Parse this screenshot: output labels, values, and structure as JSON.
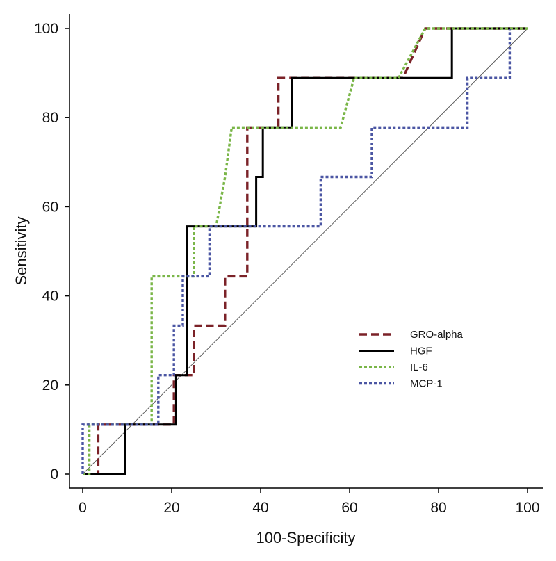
{
  "chart_data": {
    "type": "line",
    "title": "",
    "xlabel": "100-Specificity",
    "ylabel": "Sensitivity",
    "xlim": [
      0,
      100
    ],
    "ylim": [
      0,
      100
    ],
    "xticks": [
      0,
      20,
      40,
      60,
      80,
      100
    ],
    "yticks": [
      0,
      20,
      40,
      60,
      80,
      100
    ],
    "grid": false,
    "legend_position": "lower-right",
    "reference_line": {
      "name": "chance-diagonal",
      "x": [
        0,
        100
      ],
      "y": [
        0,
        100
      ],
      "color": "#555555"
    },
    "series": [
      {
        "name": "GRO-alpha",
        "style": "dashed",
        "color": "#7b2228",
        "x": [
          0,
          3.5,
          3.5,
          20.5,
          20.5,
          25,
          25,
          32,
          32,
          37,
          37,
          39,
          39,
          44,
          44,
          72,
          77,
          100
        ],
        "y": [
          0,
          0,
          11.1,
          11.1,
          22.2,
          22.2,
          33.3,
          33.3,
          44.4,
          44.4,
          77.8,
          77.8,
          77.8,
          77.8,
          88.9,
          88.9,
          100,
          100
        ]
      },
      {
        "name": "HGF",
        "style": "solid",
        "color": "#000000",
        "x": [
          0,
          9.5,
          9.5,
          21,
          21,
          23.5,
          23.5,
          37.5,
          37.5,
          39,
          39,
          40.5,
          40.5,
          47,
          47,
          83,
          83,
          100
        ],
        "y": [
          0,
          0,
          11.1,
          11.1,
          22.2,
          22.2,
          55.6,
          55.6,
          55.6,
          55.6,
          66.7,
          66.7,
          77.8,
          77.8,
          88.9,
          88.9,
          100,
          100
        ]
      },
      {
        "name": "IL-6",
        "style": "dotted",
        "color": "#7ab648",
        "x": [
          0,
          1.5,
          1.5,
          15.5,
          15.5,
          25,
          25,
          30,
          32,
          33.5,
          58,
          61,
          71,
          77,
          100
        ],
        "y": [
          0,
          0,
          11.1,
          11.1,
          44.4,
          44.4,
          55.6,
          55.6,
          66.7,
          77.8,
          77.8,
          88.9,
          88.9,
          100,
          100
        ]
      },
      {
        "name": "MCP-1",
        "style": "dotted",
        "color": "#4b56a3",
        "x": [
          0,
          0,
          17,
          17,
          20.5,
          20.5,
          22.5,
          22.5,
          28.5,
          28.5,
          53.5,
          53.5,
          65,
          65,
          86.5,
          86.5,
          96,
          96
        ],
        "y": [
          0,
          11.1,
          11.1,
          22.2,
          22.2,
          33.3,
          33.3,
          44.4,
          44.4,
          55.6,
          55.6,
          66.7,
          66.7,
          77.8,
          77.8,
          88.9,
          88.9,
          100
        ]
      }
    ]
  }
}
